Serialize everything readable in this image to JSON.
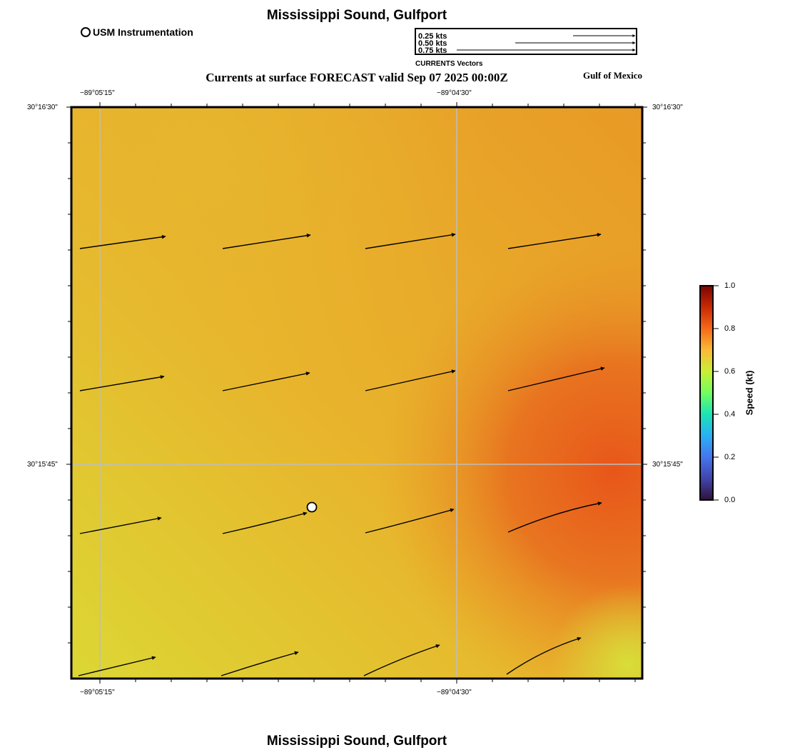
{
  "header": {
    "title": "Mississippi Sound, Gulfport",
    "subtitle": "Currents at surface FORECAST valid Sep 07 2025 00:00Z",
    "region": "Gulf of Mexico",
    "usm_legend": "USM Instrumentation"
  },
  "vector_legend": {
    "rows": [
      "0.25 kts",
      "0.50 kts",
      "0.75 kts"
    ],
    "caption": "CURRENTS Vectors"
  },
  "axes": {
    "lon_top_left": "−89°05'15\"",
    "lon_top_right": "−89°04'30\"",
    "lon_bottom_left": "−89°05'15\"",
    "lon_bottom_right": "−89°04'30\"",
    "lat_left_top": "30°16'30\"",
    "lat_left_mid": "30°15'45\"",
    "lat_right_top": "30°16'30\"",
    "lat_right_mid": "30°15'45\""
  },
  "colorbar": {
    "title": "Speed (kt)",
    "ticks": [
      "1.0",
      "0.8",
      "0.6",
      "0.4",
      "0.2",
      "0.0"
    ]
  },
  "footer": {
    "title": "Mississippi Sound, Gulfport"
  },
  "colors": {
    "field_low": "#d9d934",
    "field_mid": "#e6b22e",
    "field_high": "#e8601c",
    "grid": "#bdbdbd",
    "station_marker": "#ffffff"
  }
}
